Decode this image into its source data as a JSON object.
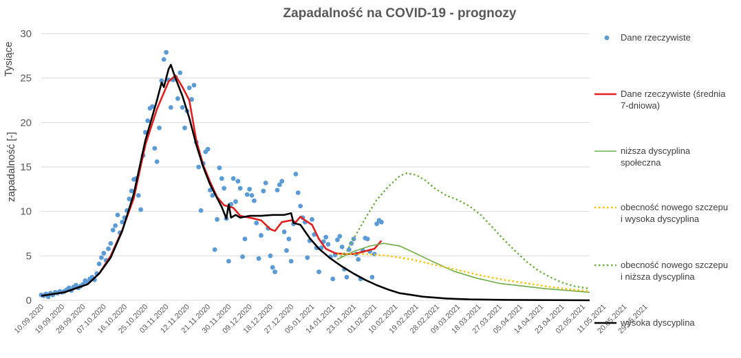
{
  "chart_data": {
    "type": "line",
    "title": "Zapadalność na COVID-19 - prognozy",
    "ylabel": "zapadalność [-]",
    "y_unit_label": "Tysiące",
    "ylim": [
      0,
      30
    ],
    "y_ticks": [
      "0",
      "5",
      "10",
      "15",
      "20",
      "25",
      "30"
    ],
    "grid": true,
    "legend_position": "right",
    "x_tick_labels": [
      "10.09.2020",
      "19.09.2020",
      "28.09.2020",
      "07.10.2020",
      "16.10.2020",
      "25.10.2020",
      "03.11.2020",
      "12.11.2020",
      "21.11.2020",
      "30.11.2020",
      "09.12.2020",
      "18.12.2020",
      "27.12.2020",
      "05.01.2021",
      "14.01.2021",
      "23.01.2021",
      "01.02.2021",
      "10.02.2021",
      "19.02.2021",
      "28.02.2021",
      "09.03.2021",
      "18.03.2021",
      "27.03.2021",
      "05.04.2021",
      "14.04.2021",
      "23.04.2021",
      "02.05.2021",
      "11.05.2021",
      "20.05.2021",
      "29.05.2021"
    ],
    "series": [
      {
        "name": "Dane rzeczywiste",
        "kind": "scatter",
        "color": "#5b9bd5",
        "points": [
          [
            0,
            0.6
          ],
          [
            1,
            0.5
          ],
          [
            2,
            0.7
          ],
          [
            3,
            0.4
          ],
          [
            4,
            0.8
          ],
          [
            5,
            0.6
          ],
          [
            6,
            0.9
          ],
          [
            7,
            0.8
          ],
          [
            8,
            1.0
          ],
          [
            9,
            0.9
          ],
          [
            10,
            1.0
          ],
          [
            11,
            1.2
          ],
          [
            12,
            1.4
          ],
          [
            13,
            1.1
          ],
          [
            14,
            1.5
          ],
          [
            15,
            1.7
          ],
          [
            16,
            1.4
          ],
          [
            17,
            1.6
          ],
          [
            18,
            1.8
          ],
          [
            19,
            2.2
          ],
          [
            20,
            2.0
          ],
          [
            21,
            2.4
          ],
          [
            22,
            2.6
          ],
          [
            23,
            2.3
          ],
          [
            24,
            3.0
          ],
          [
            25,
            4.1
          ],
          [
            26,
            4.8
          ],
          [
            27,
            5.3
          ],
          [
            28,
            4.5
          ],
          [
            29,
            5.8
          ],
          [
            30,
            6.4
          ],
          [
            31,
            7.9
          ],
          [
            32,
            8.4
          ],
          [
            33,
            9.6
          ],
          [
            34,
            7.6
          ],
          [
            35,
            8.8
          ],
          [
            36,
            9.3
          ],
          [
            37,
            10.1
          ],
          [
            38,
            11.4
          ],
          [
            39,
            12.3
          ],
          [
            40,
            13.6
          ],
          [
            41,
            13.7
          ],
          [
            42,
            11.8
          ],
          [
            43,
            10.2
          ],
          [
            44,
            16.3
          ],
          [
            45,
            18.9
          ],
          [
            46,
            20.2
          ],
          [
            47,
            21.6
          ],
          [
            48,
            21.8
          ],
          [
            49,
            17.1
          ],
          [
            50,
            15.6
          ],
          [
            51,
            19.4
          ],
          [
            52,
            24.7
          ],
          [
            53,
            27.1
          ],
          [
            54,
            27.9
          ],
          [
            55,
            24.8
          ],
          [
            56,
            21.7
          ],
          [
            57,
            24.8
          ],
          [
            58,
            25.1
          ],
          [
            59,
            22.7
          ],
          [
            60,
            25.6
          ],
          [
            61,
            21.7
          ],
          [
            62,
            19.4
          ],
          [
            63,
            21.3
          ],
          [
            64,
            23.9
          ],
          [
            65,
            22.6
          ],
          [
            66,
            24.2
          ],
          [
            67,
            17.8
          ],
          [
            68,
            15.0
          ],
          [
            69,
            10.1
          ],
          [
            70,
            15.4
          ],
          [
            71,
            16.7
          ],
          [
            72,
            17.0
          ],
          [
            73,
            12.4
          ],
          [
            74,
            11.8
          ],
          [
            75,
            5.7
          ],
          [
            76,
            9.1
          ],
          [
            77,
            14.9
          ],
          [
            78,
            13.7
          ],
          [
            79,
            12.6
          ],
          [
            80,
            9.2
          ],
          [
            81,
            4.4
          ],
          [
            82,
            10.8
          ],
          [
            83,
            13.7
          ],
          [
            84,
            11.1
          ],
          [
            85,
            13.4
          ],
          [
            86,
            12.6
          ],
          [
            87,
            4.9
          ],
          [
            88,
            6.9
          ],
          [
            89,
            11.9
          ],
          [
            90,
            12.5
          ],
          [
            91,
            11.8
          ],
          [
            92,
            11.2
          ],
          [
            93,
            8.7
          ],
          [
            94,
            4.7
          ],
          [
            95,
            7.3
          ],
          [
            96,
            12.3
          ],
          [
            97,
            13.2
          ],
          [
            98,
            8.1
          ],
          [
            99,
            5.0
          ],
          [
            100,
            3.7
          ],
          [
            101,
            3.2
          ],
          [
            102,
            12.4
          ],
          [
            103,
            13.0
          ],
          [
            104,
            13.4
          ],
          [
            105,
            7.7
          ],
          [
            106,
            5.6
          ],
          [
            107,
            6.9
          ],
          [
            108,
            4.4
          ],
          [
            109,
            8.6
          ],
          [
            110,
            14.2
          ],
          [
            111,
            12.1
          ],
          [
            112,
            10.6
          ],
          [
            113,
            9.3
          ],
          [
            114,
            8.8
          ],
          [
            115,
            4.8
          ],
          [
            116,
            6.7
          ],
          [
            117,
            9.1
          ],
          [
            118,
            7.4
          ],
          [
            119,
            5.9
          ],
          [
            120,
            3.2
          ],
          [
            121,
            5.9
          ],
          [
            122,
            6.6
          ],
          [
            123,
            7.1
          ],
          [
            124,
            6.3
          ],
          [
            125,
            4.9
          ],
          [
            126,
            2.4
          ],
          [
            127,
            5.1
          ],
          [
            128,
            6.8
          ],
          [
            129,
            7.2
          ],
          [
            130,
            6.0
          ],
          [
            131,
            3.5
          ],
          [
            132,
            2.6
          ],
          [
            133,
            5.7
          ],
          [
            134,
            6.4
          ],
          [
            135,
            6.9
          ],
          [
            136,
            5.2
          ],
          [
            137,
            4.6
          ],
          [
            138,
            2.4
          ],
          [
            139,
            5.6
          ],
          [
            140,
            7.0
          ],
          [
            141,
            6.9
          ],
          [
            142,
            5.5
          ],
          [
            143,
            2.6
          ],
          [
            144,
            5.2
          ],
          [
            145,
            8.6
          ],
          [
            146,
            9.0
          ],
          [
            147,
            8.8
          ]
        ]
      },
      {
        "name": "Dane rzeczywiste (średnia 7-dniowa)",
        "kind": "line",
        "color": "#e02020",
        "points": [
          [
            0,
            0.5
          ],
          [
            10,
            0.9
          ],
          [
            20,
            1.8
          ],
          [
            25,
            3.0
          ],
          [
            30,
            5.0
          ],
          [
            35,
            7.9
          ],
          [
            40,
            11.5
          ],
          [
            45,
            17.5
          ],
          [
            50,
            21.5
          ],
          [
            55,
            24.6
          ],
          [
            58,
            25.3
          ],
          [
            61,
            24.0
          ],
          [
            64,
            22.5
          ],
          [
            67,
            18.0
          ],
          [
            70,
            15.2
          ],
          [
            73,
            13.3
          ],
          [
            76,
            11.6
          ],
          [
            79,
            10.7
          ],
          [
            83,
            10.4
          ],
          [
            86,
            9.5
          ],
          [
            90,
            9.3
          ],
          [
            95,
            9.0
          ],
          [
            97,
            8.5
          ],
          [
            99,
            8.0
          ],
          [
            101,
            7.8
          ],
          [
            104,
            8.8
          ],
          [
            108,
            9.0
          ],
          [
            110,
            8.8
          ],
          [
            112,
            9.4
          ],
          [
            114,
            9.0
          ],
          [
            117,
            8.5
          ],
          [
            120,
            6.9
          ],
          [
            123,
            5.8
          ],
          [
            127,
            5.3
          ],
          [
            131,
            5.2
          ],
          [
            135,
            5.2
          ],
          [
            138,
            5.4
          ],
          [
            141,
            5.6
          ],
          [
            144,
            5.8
          ],
          [
            147,
            6.7
          ]
        ]
      },
      {
        "name": "niższa dyscyplina społeczna",
        "kind": "line",
        "color": "#70ad47",
        "points": [
          [
            128,
            4.6
          ],
          [
            135,
            5.5
          ],
          [
            142,
            6.1
          ],
          [
            148,
            6.4
          ],
          [
            155,
            6.1
          ],
          [
            160,
            5.5
          ],
          [
            168,
            4.5
          ],
          [
            178,
            3.3
          ],
          [
            188,
            2.5
          ],
          [
            198,
            1.9
          ],
          [
            208,
            1.6
          ],
          [
            218,
            1.3
          ],
          [
            228,
            1.1
          ],
          [
            237,
            0.9
          ]
        ]
      },
      {
        "name": "obecność nowego szczepu i wysoka dyscyplina",
        "kind": "dotted",
        "color": "#ffc000",
        "points": [
          [
            128,
            5.2
          ],
          [
            140,
            5.2
          ],
          [
            150,
            5.0
          ],
          [
            160,
            4.6
          ],
          [
            170,
            4.0
          ],
          [
            180,
            3.4
          ],
          [
            190,
            2.8
          ],
          [
            200,
            2.3
          ],
          [
            210,
            1.9
          ],
          [
            220,
            1.5
          ],
          [
            230,
            1.2
          ],
          [
            237,
            1.0
          ]
        ]
      },
      {
        "name": "obecność nowego szczepu i niższa dyscyplina",
        "kind": "dotted",
        "color": "#70ad47",
        "points": [
          [
            128,
            4.6
          ],
          [
            132,
            5.5
          ],
          [
            136,
            7.4
          ],
          [
            140,
            9.2
          ],
          [
            145,
            11.3
          ],
          [
            150,
            12.8
          ],
          [
            155,
            14.0
          ],
          [
            158,
            14.3
          ],
          [
            162,
            14.1
          ],
          [
            166,
            13.5
          ],
          [
            170,
            12.6
          ],
          [
            175,
            11.8
          ],
          [
            180,
            11.3
          ],
          [
            185,
            10.6
          ],
          [
            190,
            9.6
          ],
          [
            195,
            8.2
          ],
          [
            200,
            6.8
          ],
          [
            205,
            5.5
          ],
          [
            210,
            4.3
          ],
          [
            215,
            3.3
          ],
          [
            220,
            2.6
          ],
          [
            225,
            2.0
          ],
          [
            230,
            1.6
          ],
          [
            237,
            1.3
          ]
        ]
      },
      {
        "name": "wysoka dyscyplina",
        "kind": "line",
        "color": "#000000",
        "points": [
          [
            0,
            0.5
          ],
          [
            10,
            0.9
          ],
          [
            20,
            1.8
          ],
          [
            25,
            3.0
          ],
          [
            30,
            4.8
          ],
          [
            35,
            7.8
          ],
          [
            40,
            12.0
          ],
          [
            45,
            18.0
          ],
          [
            50,
            22.5
          ],
          [
            52,
            24.5
          ],
          [
            53,
            24.0
          ],
          [
            55,
            26.0
          ],
          [
            56,
            26.5
          ],
          [
            58,
            25.0
          ],
          [
            61,
            23.0
          ],
          [
            64,
            20.5
          ],
          [
            67,
            17.5
          ],
          [
            70,
            15.0
          ],
          [
            73,
            13.0
          ],
          [
            76,
            11.5
          ],
          [
            78,
            10.5
          ],
          [
            80,
            9.2
          ],
          [
            81,
            10.8
          ],
          [
            82,
            9.3
          ],
          [
            84,
            9.6
          ],
          [
            86,
            9.3
          ],
          [
            90,
            9.5
          ],
          [
            95,
            9.5
          ],
          [
            100,
            9.6
          ],
          [
            105,
            9.6
          ],
          [
            108,
            9.8
          ],
          [
            109,
            8.7
          ],
          [
            112,
            8.5
          ],
          [
            116,
            7.0
          ],
          [
            120,
            5.8
          ],
          [
            125,
            4.7
          ],
          [
            130,
            3.8
          ],
          [
            135,
            3.0
          ],
          [
            140,
            2.3
          ],
          [
            145,
            1.7
          ],
          [
            150,
            1.2
          ],
          [
            155,
            0.8
          ],
          [
            160,
            0.6
          ],
          [
            165,
            0.4
          ],
          [
            170,
            0.3
          ],
          [
            175,
            0.2
          ],
          [
            185,
            0.1
          ],
          [
            200,
            0.05
          ],
          [
            237,
            0.0
          ]
        ]
      }
    ]
  }
}
